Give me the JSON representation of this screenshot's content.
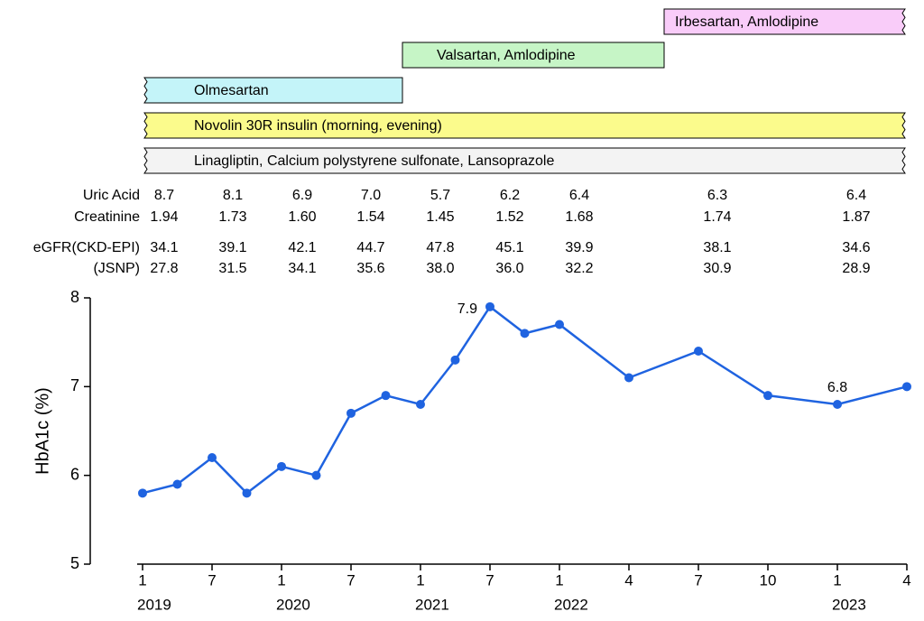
{
  "medications": [
    {
      "label": "Irbesartan, Amlodipine",
      "color": "#f9ccf9"
    },
    {
      "label": "Valsartan, Amlodipine",
      "color": "#c6f5c6"
    },
    {
      "label": "Olmesartan",
      "color": "#c4f4f9"
    },
    {
      "label": "Novolin 30R insulin (morning, evening)",
      "color": "#fbfb8c"
    },
    {
      "label": "Linagliptin, Calcium polystyrene sulfonate, Lansoprazole",
      "color": "#f3f3f3"
    }
  ],
  "lab_table": {
    "rows": [
      {
        "label": "Uric Acid",
        "values": [
          "8.7",
          "8.1",
          "6.9",
          "7.0",
          "5.7",
          "6.2",
          "6.4",
          "6.3",
          "6.4"
        ]
      },
      {
        "label": "Creatinine",
        "values": [
          "1.94",
          "1.73",
          "1.60",
          "1.54",
          "1.45",
          "1.52",
          "1.68",
          "1.74",
          "1.87"
        ]
      },
      {
        "label": "eGFR(CKD-EPI)",
        "values": [
          "34.1",
          "39.1",
          "42.1",
          "44.7",
          "47.8",
          "45.1",
          "39.9",
          "38.1",
          "34.6"
        ]
      },
      {
        "label": "(JSNP)",
        "values": [
          "27.8",
          "31.5",
          "34.1",
          "35.6",
          "38.0",
          "36.0",
          "32.2",
          "30.9",
          "28.9"
        ]
      }
    ]
  },
  "chart_data": {
    "type": "line",
    "y_label": "HbA1c (%)",
    "color": "#1f63e0",
    "x": [
      "2019-1",
      "2019-4",
      "2019-7",
      "2019-10",
      "2020-1",
      "2020-4",
      "2020-7",
      "2020-10",
      "2021-1",
      "2021-4",
      "2021-7",
      "2021-10",
      "2022-1",
      "2022-4",
      "2022-7",
      "2022-10",
      "2023-1",
      "2023-4"
    ],
    "values": [
      5.8,
      5.9,
      6.2,
      5.8,
      6.1,
      6.0,
      6.7,
      6.9,
      6.8,
      7.3,
      7.9,
      7.6,
      7.7,
      7.1,
      7.4,
      6.9,
      6.8,
      7.0
    ],
    "value_labels": [
      null,
      null,
      null,
      null,
      null,
      null,
      null,
      null,
      null,
      null,
      "7.9",
      null,
      null,
      null,
      null,
      null,
      "6.8",
      null
    ],
    "ylim": [
      5,
      8
    ],
    "yticks": [
      5,
      6,
      7,
      8
    ],
    "xticks": [
      {
        "value": "2019-1",
        "label": "1"
      },
      {
        "value": "2019-7",
        "label": "7"
      },
      {
        "value": "2020-1",
        "label": "1"
      },
      {
        "value": "2020-7",
        "label": "7"
      },
      {
        "value": "2021-1",
        "label": "1"
      },
      {
        "value": "2021-7",
        "label": "7"
      },
      {
        "value": "2022-1",
        "label": "1"
      },
      {
        "value": "2022-4",
        "label": "4"
      },
      {
        "value": "2022-7",
        "label": "7"
      },
      {
        "value": "2022-10",
        "label": "10"
      },
      {
        "value": "2023-1",
        "label": "1"
      },
      {
        "value": "2023-4",
        "label": "4"
      }
    ],
    "year_labels": [
      {
        "value": "2019-1",
        "label": "2019"
      },
      {
        "value": "2020-1",
        "label": "2020"
      },
      {
        "value": "2021-1",
        "label": "2021"
      },
      {
        "value": "2022-1",
        "label": "2022"
      },
      {
        "value": "2023-1",
        "label": "2023"
      }
    ]
  }
}
